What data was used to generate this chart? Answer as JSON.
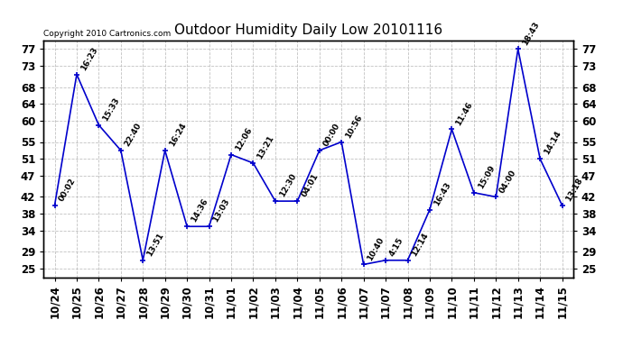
{
  "title": "Outdoor Humidity Daily Low 20101116",
  "copyright": "Copyright 2010 Cartronics.com",
  "x_labels": [
    "10/24",
    "10/25",
    "10/26",
    "10/27",
    "10/28",
    "10/29",
    "10/30",
    "10/31",
    "11/01",
    "11/02",
    "11/03",
    "11/04",
    "11/05",
    "11/06",
    "11/07",
    "11/07",
    "11/08",
    "11/09",
    "11/10",
    "11/11",
    "11/12",
    "11/13",
    "11/14",
    "11/15"
  ],
  "x_positions": [
    0,
    1,
    2,
    3,
    4,
    5,
    6,
    7,
    8,
    9,
    10,
    11,
    12,
    13,
    14,
    15,
    16,
    17,
    18,
    19,
    20,
    21,
    22,
    23
  ],
  "y_values": [
    40,
    71,
    59,
    53,
    27,
    53,
    35,
    35,
    52,
    50,
    41,
    41,
    53,
    55,
    26,
    27,
    27,
    39,
    58,
    43,
    42,
    77,
    51,
    40
  ],
  "point_labels": [
    "00:02",
    "16:23",
    "15:33",
    "22:40",
    "13:51",
    "16:24",
    "14:36",
    "13:03",
    "12:06",
    "13:21",
    "12:30",
    "04:01",
    "00:00",
    "10:56",
    "10:40",
    "4:15",
    "12:14",
    "16:43",
    "11:46",
    "15:09",
    "04:00",
    "18:43",
    "14:14",
    "13:18"
  ],
  "line_color": "#0000cc",
  "marker_color": "#0000cc",
  "bg_color": "#ffffff",
  "grid_color": "#bbbbbb",
  "yticks": [
    25,
    29,
    34,
    38,
    42,
    47,
    51,
    55,
    60,
    64,
    68,
    73,
    77
  ],
  "ylim": [
    23,
    79
  ],
  "xlim": [
    -0.5,
    23.5
  ],
  "label_fontsize": 6.5,
  "tick_fontsize": 8.5,
  "title_fontsize": 11
}
